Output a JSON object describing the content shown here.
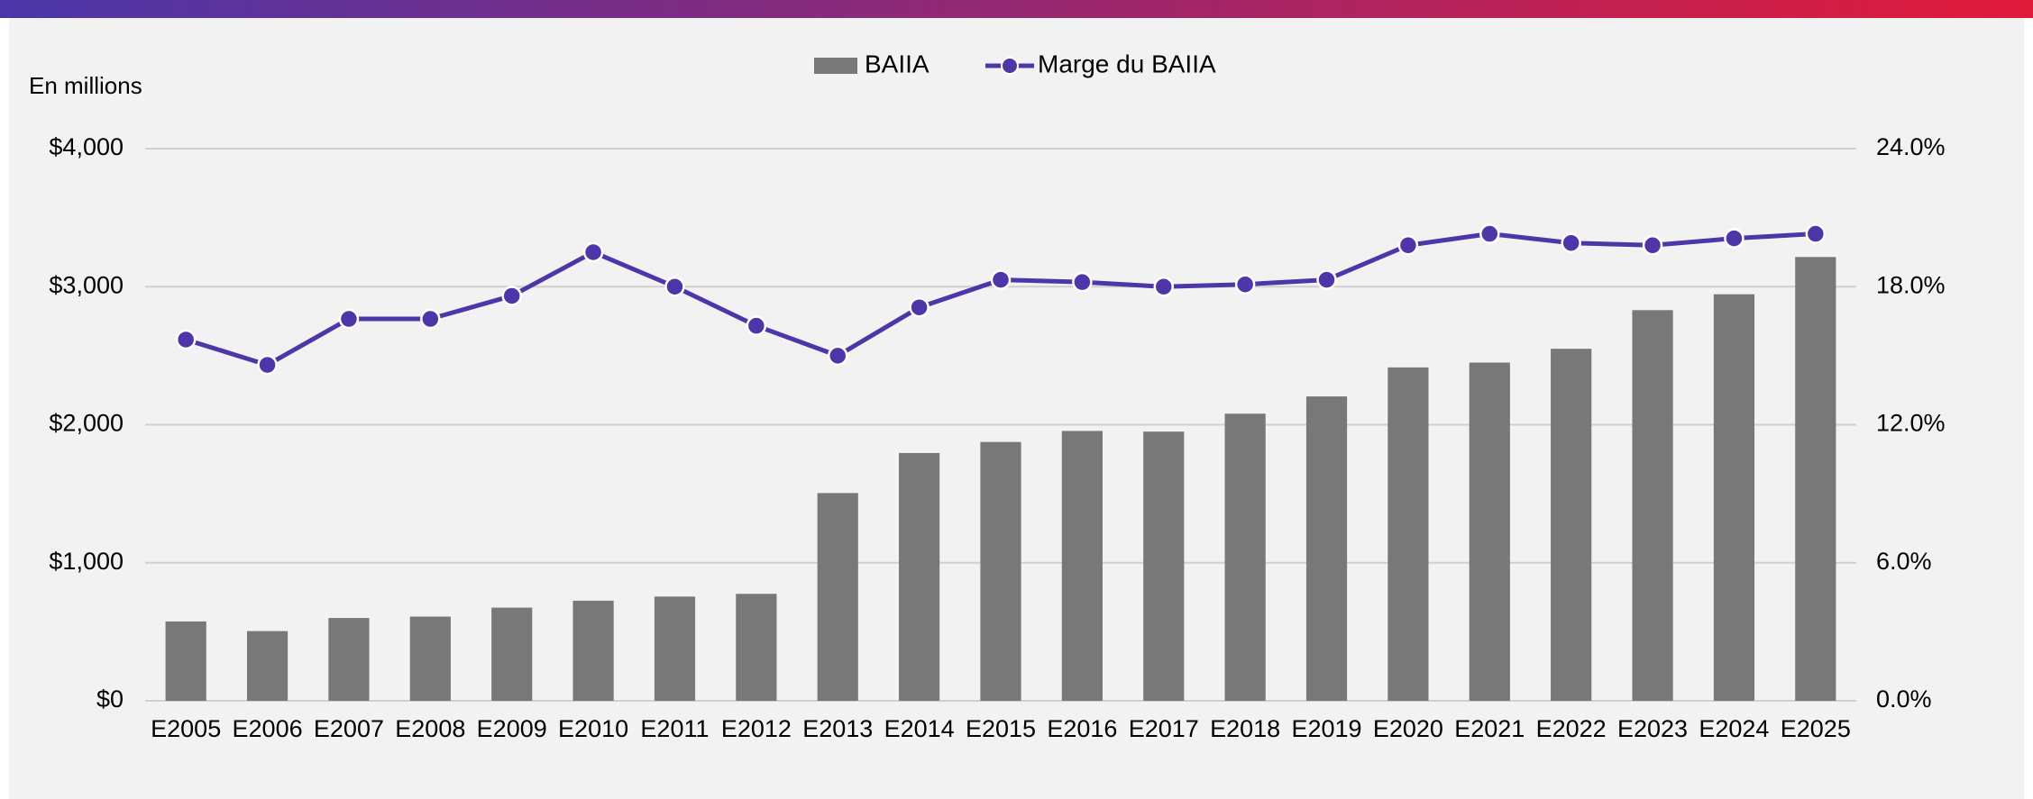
{
  "chart_data": {
    "type": "bar_line",
    "y_axis_note": "En millions",
    "categories": [
      "E2005",
      "E2006",
      "E2007",
      "E2008",
      "E2009",
      "E2010",
      "E2011",
      "E2012",
      "E2013",
      "E2014",
      "E2015",
      "E2016",
      "E2017",
      "E2018",
      "E2019",
      "E2020",
      "E2021",
      "E2022",
      "E2023",
      "E2024",
      "E2025"
    ],
    "series": [
      {
        "name": "BAIIA",
        "type": "bar",
        "color": "#787878",
        "axis": "y",
        "values": [
          575,
          505,
          600,
          610,
          675,
          725,
          755,
          775,
          1505,
          1795,
          1875,
          1955,
          1950,
          2080,
          2205,
          2415,
          2450,
          2550,
          2830,
          2945,
          3215
        ]
      },
      {
        "name": "Marge du BAIIA",
        "type": "line",
        "color": "#4f36a8",
        "axis": "y2",
        "values": [
          15.7,
          14.6,
          16.6,
          16.6,
          17.6,
          19.5,
          18.0,
          16.3,
          15.0,
          17.1,
          18.3,
          18.2,
          18.0,
          18.1,
          18.3,
          19.8,
          20.3,
          19.9,
          19.8,
          20.1,
          20.3
        ]
      }
    ],
    "ylim": [
      0,
      4000
    ],
    "yticks": [
      {
        "value": 0,
        "label": "$0"
      },
      {
        "value": 1000,
        "label": "$1,000"
      },
      {
        "value": 2000,
        "label": "$2,000"
      },
      {
        "value": 3000,
        "label": "$3,000"
      },
      {
        "value": 4000,
        "label": "$4,000"
      }
    ],
    "y2lim": [
      0,
      24
    ],
    "y2ticks": [
      {
        "value": 0,
        "label": "0.0%"
      },
      {
        "value": 6,
        "label": "6.0%"
      },
      {
        "value": 12,
        "label": "12.0%"
      },
      {
        "value": 18,
        "label": "18.0%"
      },
      {
        "value": 24,
        "label": "24.0%"
      }
    ],
    "grid": true,
    "legend": "top"
  }
}
